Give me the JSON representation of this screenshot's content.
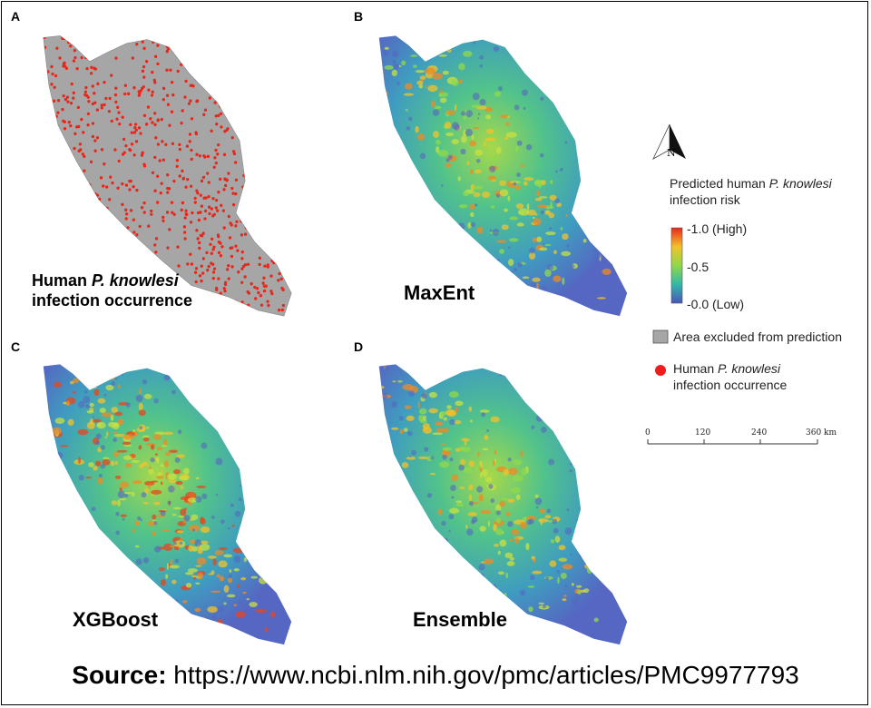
{
  "panels": [
    {
      "label": "A",
      "caption": [
        [
          "Human ",
          "P. knowlesi"
        ],
        [
          "infection occurrence"
        ]
      ]
    },
    {
      "label": "B",
      "caption": [
        [
          "MaxEnt"
        ]
      ]
    },
    {
      "label": "C",
      "caption": [
        [
          "XGBoost"
        ]
      ]
    },
    {
      "label": "D",
      "caption": [
        [
          "Ensemble"
        ]
      ]
    }
  ],
  "legend": {
    "north": "N",
    "risk_title": [
      [
        "Predicted human ",
        "P. knowlesi"
      ],
      [
        "infection risk"
      ]
    ],
    "colorbar_labels": [
      "-1.0 (High)",
      "-0.5",
      "-0.0 (Low)"
    ],
    "excluded": "Area excluded from prediction",
    "occurrence": [
      [
        "Human ",
        "P. knowlesi"
      ],
      [
        "infection occurrence"
      ]
    ],
    "scale_labels": [
      "0",
      "120",
      "240",
      "360 km"
    ]
  },
  "source": {
    "prefix": "Source:",
    "url": "https://www.ncbi.nlm.nih.gov/pmc/articles/PMC9977793"
  }
}
